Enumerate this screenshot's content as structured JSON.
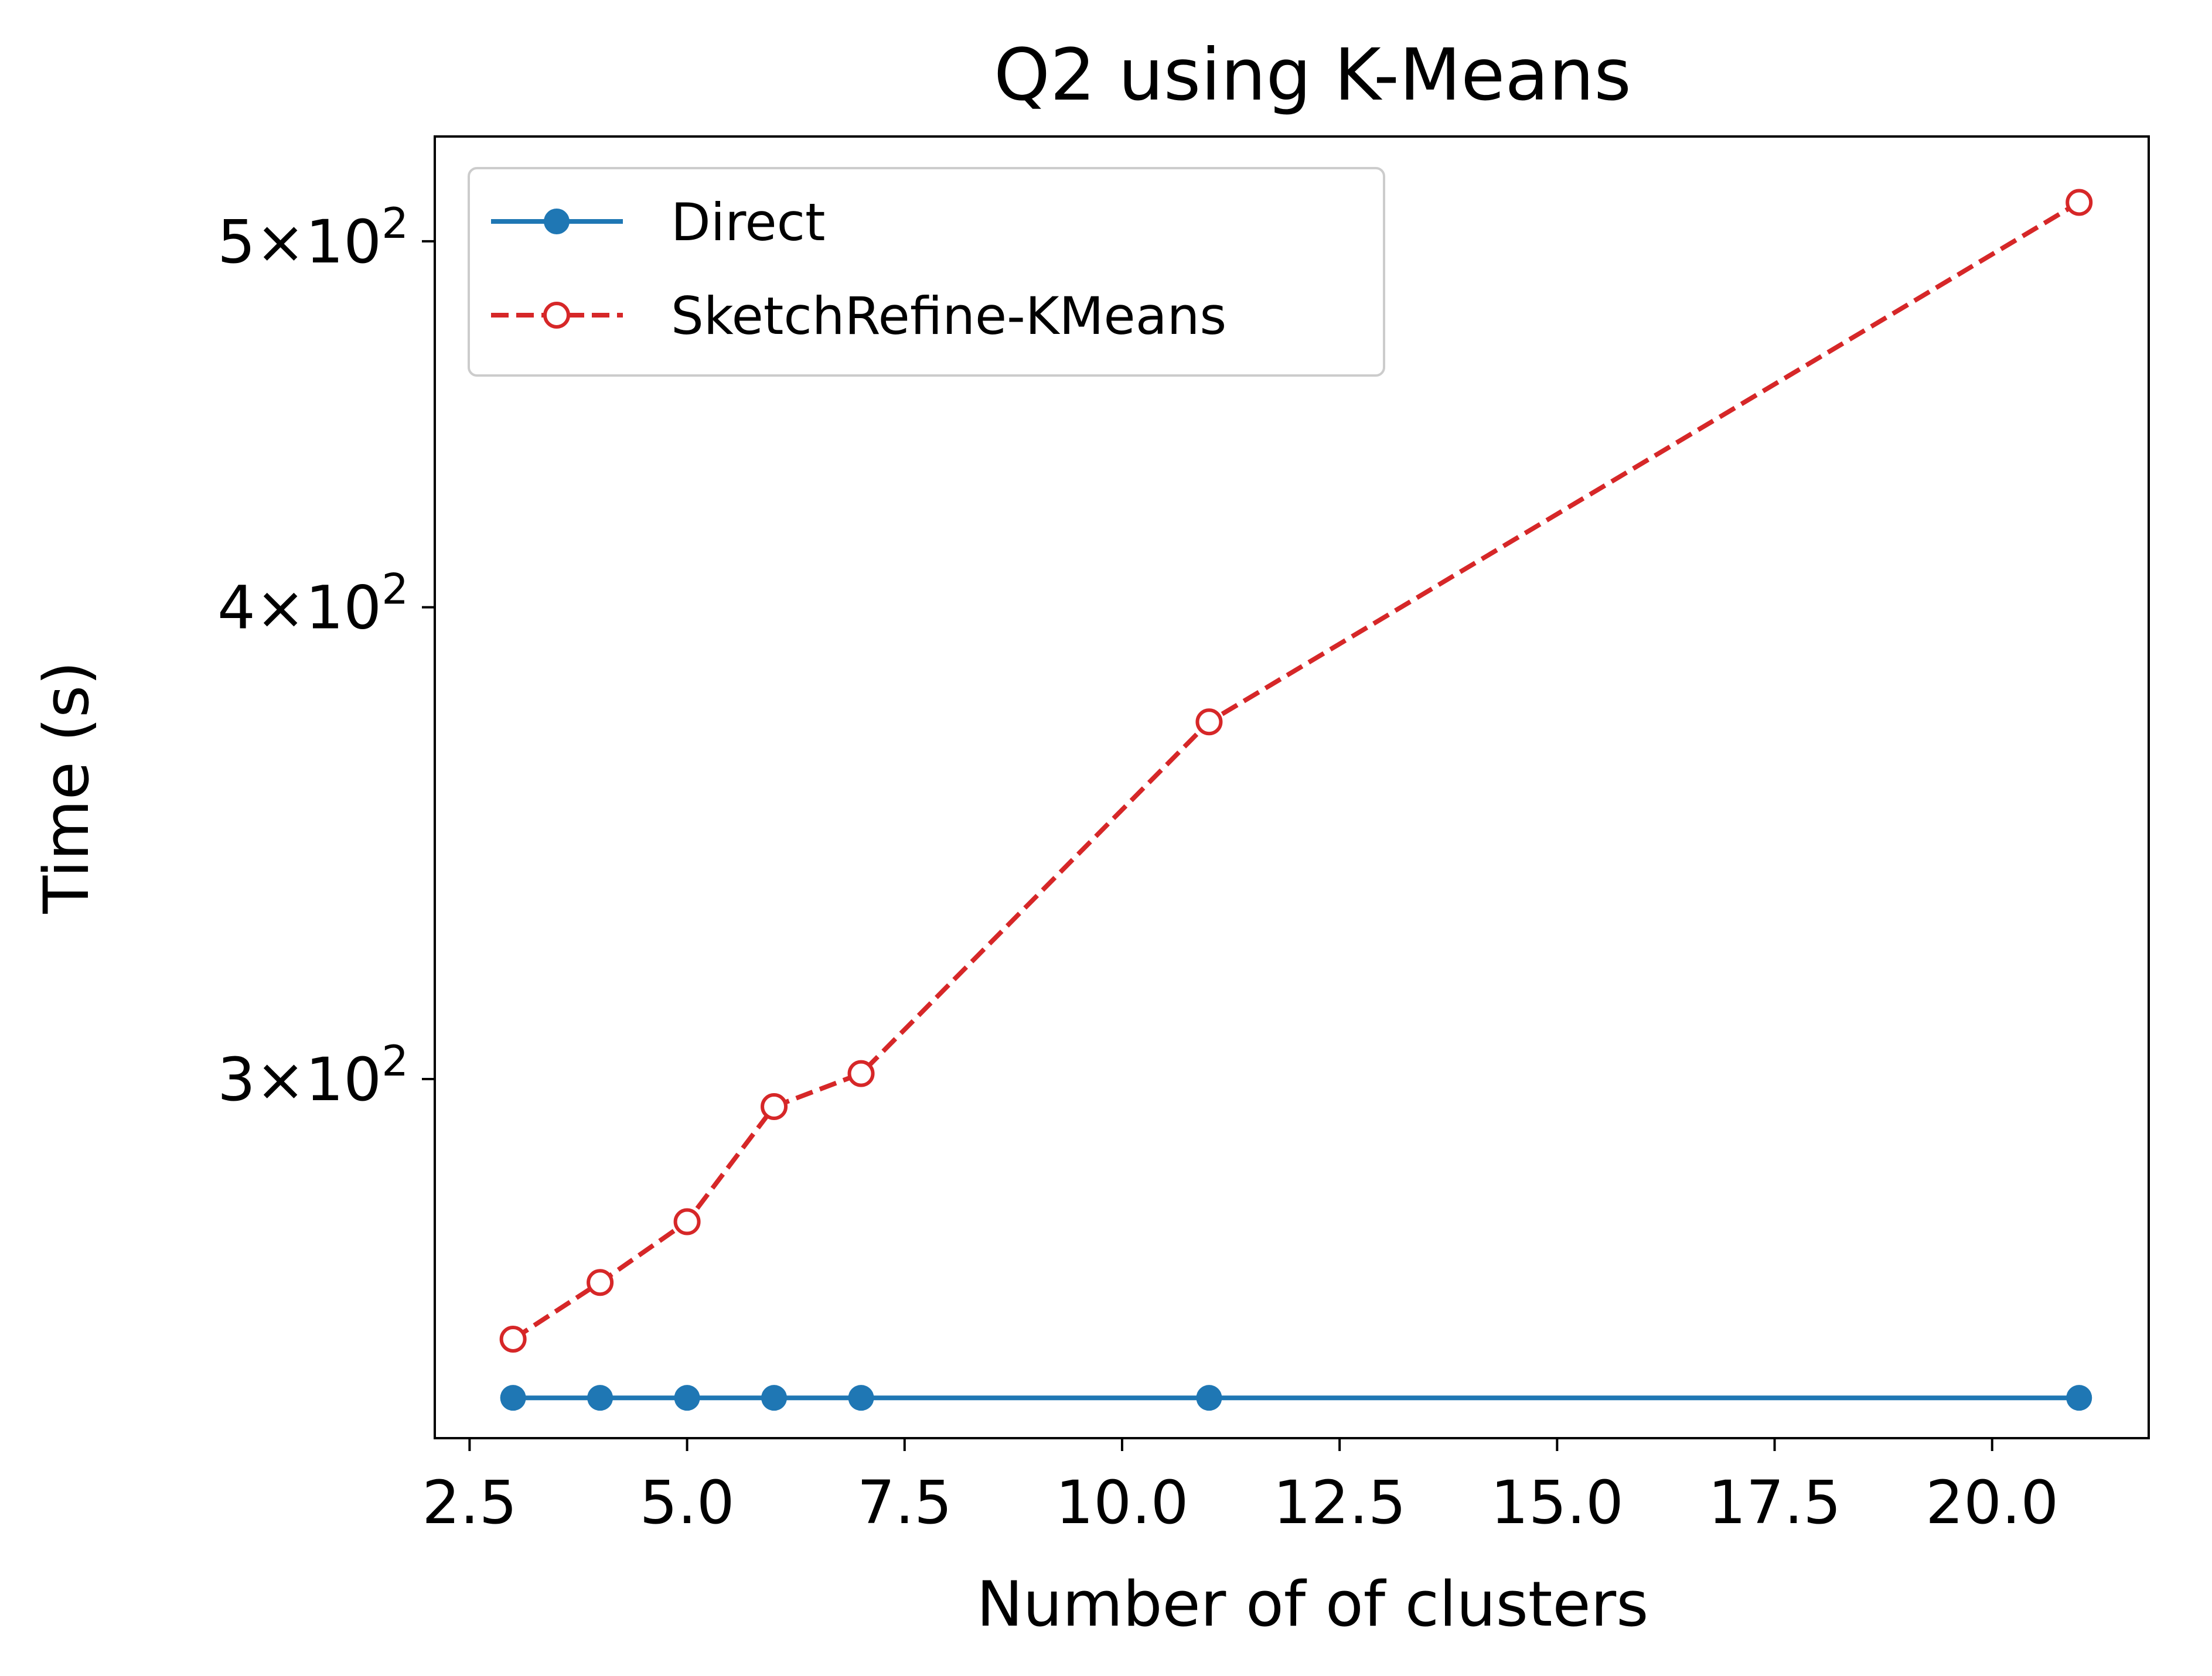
{
  "chart_data": {
    "type": "line",
    "title": "Q2 using K-Means",
    "xlabel": "Number of of clusters",
    "ylabel": "Time (s)",
    "xlim": [
      2.1,
      21.8
    ],
    "ylim": [
      241,
      533
    ],
    "yscale": "log",
    "grid": false,
    "legend_position": "top-left",
    "x": [
      3,
      4,
      5,
      6,
      7,
      11,
      21
    ],
    "x_ticks": [
      {
        "value": 2.5,
        "label": "2.5"
      },
      {
        "value": 5.0,
        "label": "5.0"
      },
      {
        "value": 7.5,
        "label": "7.5"
      },
      {
        "value": 10.0,
        "label": "10.0"
      },
      {
        "value": 12.5,
        "label": "12.5"
      },
      {
        "value": 15.0,
        "label": "15.0"
      },
      {
        "value": 17.5,
        "label": "17.5"
      },
      {
        "value": 20.0,
        "label": "20.0"
      }
    ],
    "y_ticks": [
      {
        "value": 300,
        "mantissa": "3",
        "times": "×",
        "base": "10",
        "exponent": "2"
      },
      {
        "value": 400,
        "mantissa": "4",
        "times": "×",
        "base": "10",
        "exponent": "2"
      },
      {
        "value": 500,
        "mantissa": "5",
        "times": "×",
        "base": "10",
        "exponent": "2"
      }
    ],
    "series": [
      {
        "name": "Direct",
        "color": "#1f77b4",
        "line_style": "solid",
        "marker": "filled-circle",
        "values": [
          247,
          247,
          247,
          247,
          247,
          247,
          247
        ]
      },
      {
        "name": "SketchRefine-KMeans",
        "color": "#d62728",
        "line_style": "dashed",
        "marker": "open-circle",
        "values": [
          256,
          265,
          275,
          295,
          301,
          373,
          512
        ]
      }
    ]
  }
}
